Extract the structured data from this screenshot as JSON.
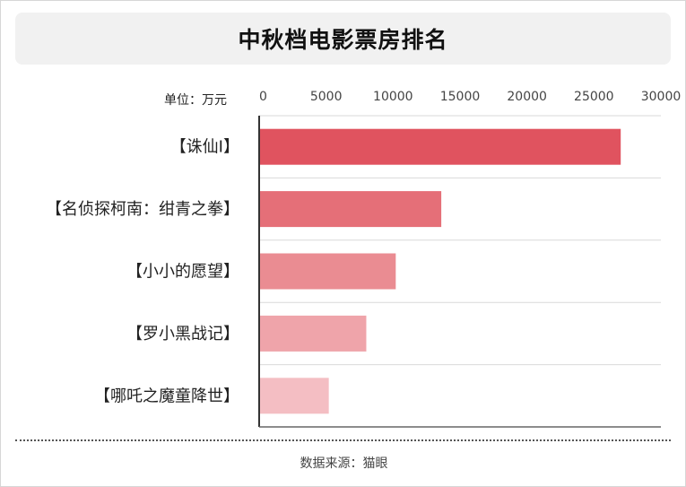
{
  "header": {
    "title": "中秋档电影票房排名"
  },
  "chart_data": {
    "type": "bar",
    "orientation": "horizontal",
    "unit": "单位：万元",
    "categories": [
      "【诛仙Ⅰ】",
      "【名侦探柯南：绀青之拳】",
      "【小小的愿望】",
      "【罗小黑战记】",
      "【哪吒之魔童降世】"
    ],
    "values": [
      27000,
      13600,
      10200,
      8000,
      5200
    ],
    "xlim": [
      0,
      30000
    ],
    "xticks": [
      "0",
      "5000",
      "10000",
      "15000",
      "20000",
      "25000",
      "30000"
    ],
    "grid": true,
    "colors": [
      "#e0535f",
      "#e56f78",
      "#ea8c92",
      "#efa4aa",
      "#f4bec3"
    ]
  },
  "footer": {
    "source": "数据来源：猫眼"
  }
}
